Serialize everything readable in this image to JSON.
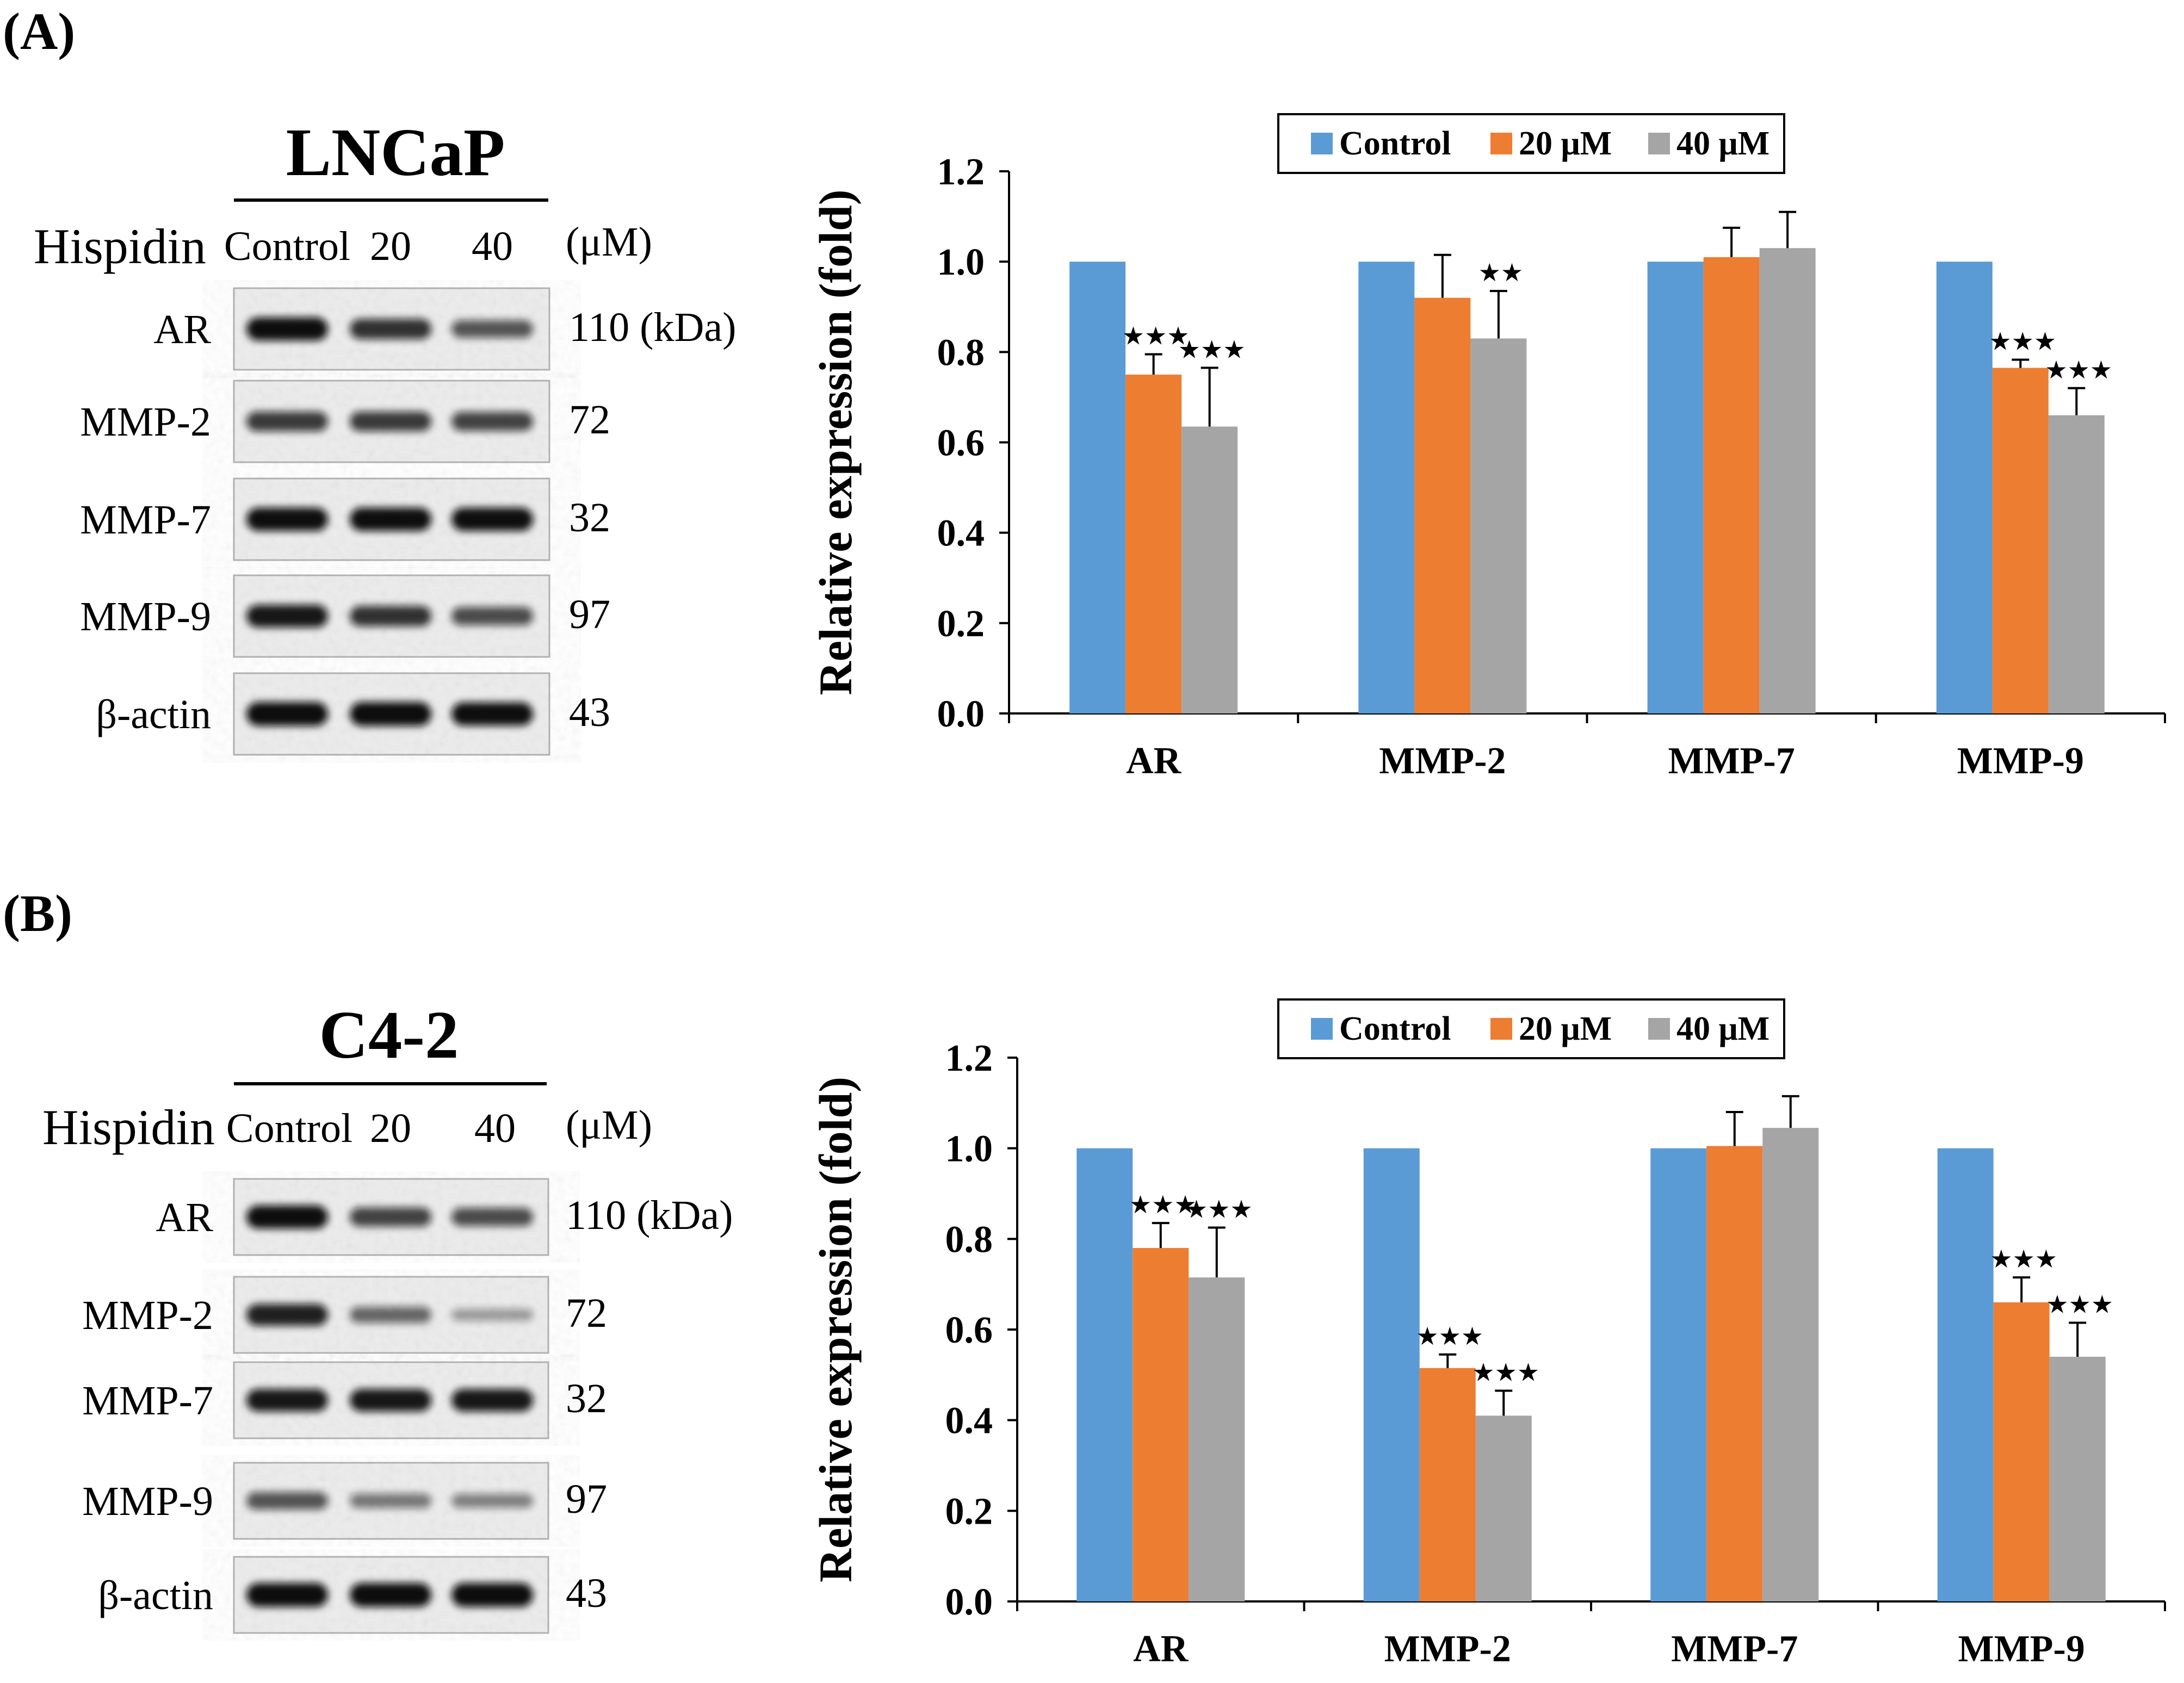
{
  "figure": {
    "panels": [
      {
        "label": "(A)",
        "blot": {
          "cell_line": "LNCaP",
          "treatment_label": "Hispidin",
          "lanes": [
            "Control",
            "20",
            "40"
          ],
          "unit": "(μM)",
          "rows": [
            {
              "protein": "AR",
              "kda": "110 (kDa)",
              "bands": [
                0.95,
                0.75,
                0.55
              ]
            },
            {
              "protein": "MMP-2",
              "kda": "72",
              "bands": [
                0.7,
                0.7,
                0.65
              ]
            },
            {
              "protein": "MMP-7",
              "kda": "32",
              "bands": [
                0.95,
                0.95,
                0.95
              ]
            },
            {
              "protein": "MMP-9",
              "kda": "97",
              "bands": [
                0.9,
                0.75,
                0.6
              ]
            },
            {
              "protein": "β-actin",
              "kda": "43",
              "bands": [
                1.0,
                1.0,
                0.95
              ]
            }
          ]
        }
      },
      {
        "label": "(B)",
        "blot": {
          "cell_line": "C4-2",
          "treatment_label": "Hispidin",
          "lanes": [
            "Control",
            "20",
            "40"
          ],
          "unit": "(μM)",
          "rows": [
            {
              "protein": "AR",
              "kda": "110 (kDa)",
              "bands": [
                0.95,
                0.65,
                0.6
              ]
            },
            {
              "protein": "MMP-2",
              "kda": "72",
              "bands": [
                0.85,
                0.45,
                0.15
              ]
            },
            {
              "protein": "MMP-7",
              "kda": "32",
              "bands": [
                0.9,
                0.9,
                0.9
              ]
            },
            {
              "protein": "MMP-9",
              "kda": "97",
              "bands": [
                0.55,
                0.35,
                0.3
              ]
            },
            {
              "protein": "β-actin",
              "kda": "43",
              "bands": [
                1.0,
                1.0,
                1.0
              ]
            }
          ]
        }
      }
    ]
  },
  "chart_data": [
    {
      "type": "bar",
      "ylabel": "Relative expression (fold)",
      "ylim": [
        0,
        1.2
      ],
      "yticks": [
        "0.0",
        "0.2",
        "0.4",
        "0.6",
        "0.8",
        "1.0",
        "1.2"
      ],
      "categories": [
        "AR",
        "MMP-2",
        "MMP-7",
        "MMP-9"
      ],
      "legend_position": "top",
      "series": [
        {
          "name": "Control",
          "color": "#5b9bd5",
          "values": [
            1.0,
            1.0,
            1.0,
            1.0
          ],
          "errors": [
            0,
            0,
            0,
            0
          ],
          "marks": [
            "",
            "",
            "",
            ""
          ]
        },
        {
          "name": "20 μM",
          "color": "#ed7d31",
          "values": [
            0.75,
            0.92,
            1.01,
            0.765
          ],
          "errors": [
            0.045,
            0.095,
            0.065,
            0.018
          ],
          "marks": [
            "★★★",
            "",
            "",
            "★★★"
          ]
        },
        {
          "name": "40 μM",
          "color": "#a5a5a5",
          "values": [
            0.635,
            0.83,
            1.03,
            0.66
          ],
          "errors": [
            0.13,
            0.105,
            0.08,
            0.06
          ],
          "marks": [
            "★★★",
            "★★",
            "",
            "★★★"
          ]
        }
      ]
    },
    {
      "type": "bar",
      "ylabel": "Relative expression (fold)",
      "ylim": [
        0,
        1.2
      ],
      "yticks": [
        "0.0",
        "0.2",
        "0.4",
        "0.6",
        "0.8",
        "1.0",
        "1.2"
      ],
      "categories": [
        "AR",
        "MMP-2",
        "MMP-7",
        "MMP-9"
      ],
      "legend_position": "top",
      "series": [
        {
          "name": "Control",
          "color": "#5b9bd5",
          "values": [
            1.0,
            1.0,
            1.0,
            1.0
          ],
          "errors": [
            0,
            0,
            0,
            0
          ],
          "marks": [
            "",
            "",
            "",
            ""
          ]
        },
        {
          "name": "20 μM",
          "color": "#ed7d31",
          "values": [
            0.78,
            0.515,
            1.005,
            0.66
          ],
          "errors": [
            0.055,
            0.03,
            0.075,
            0.055
          ],
          "marks": [
            "★★★",
            "★★★",
            "",
            "★★★"
          ]
        },
        {
          "name": "40 μM",
          "color": "#a5a5a5",
          "values": [
            0.715,
            0.41,
            1.045,
            0.54
          ],
          "errors": [
            0.11,
            0.055,
            0.07,
            0.075
          ],
          "marks": [
            "★★★",
            "★★★",
            "",
            "★★★"
          ]
        }
      ]
    }
  ]
}
